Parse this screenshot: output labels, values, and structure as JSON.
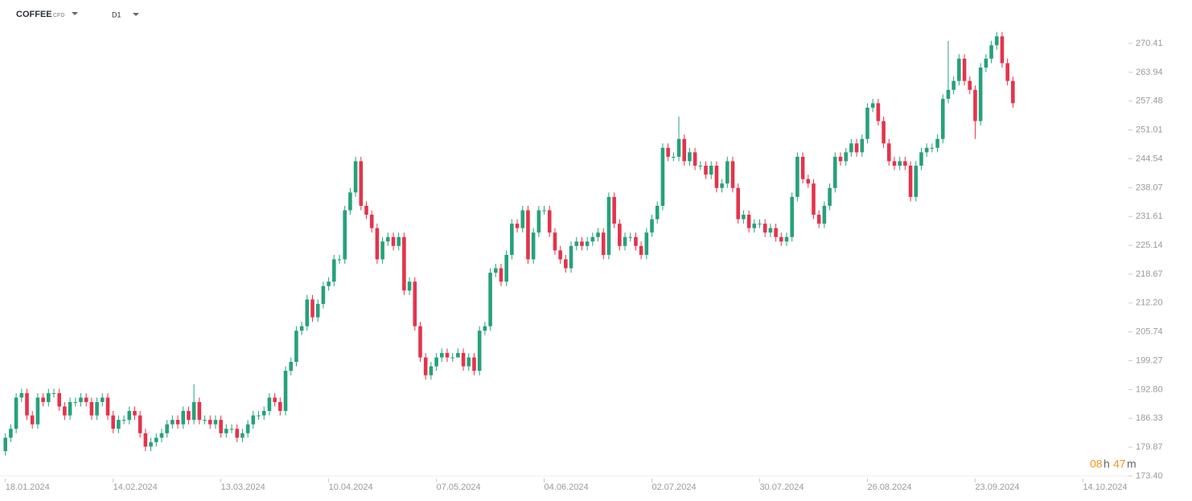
{
  "header": {
    "symbol": "COFFEE",
    "instrument_type": "CFD",
    "timeframe": "D1"
  },
  "timer": {
    "hours": "08",
    "hours_unit": "h",
    "minutes": "47",
    "minutes_unit": "m"
  },
  "chart_data": {
    "type": "candlestick",
    "xlim": [
      -1,
      208
    ],
    "ylim": [
      173.4,
      280.15
    ],
    "xticks": [
      {
        "value": 0,
        "label": "18.01.2024"
      },
      {
        "value": 20,
        "label": "14.02.2024"
      },
      {
        "value": 40,
        "label": "13.03.2024"
      },
      {
        "value": 60,
        "label": "10.04.2024"
      },
      {
        "value": 80,
        "label": "07.05.2024"
      },
      {
        "value": 100,
        "label": "04.06.2024"
      },
      {
        "value": 120,
        "label": "02.07.2024"
      },
      {
        "value": 140,
        "label": "30.07.2024"
      },
      {
        "value": 160,
        "label": "26.08.2024"
      },
      {
        "value": 180,
        "label": "23.09.2024"
      },
      {
        "value": 200,
        "label": "14.10.2024"
      }
    ],
    "yticks": [
      {
        "value": 173.4,
        "label": "173.40"
      },
      179.87,
      186.33,
      {
        "value": 192.8,
        "label": "192.80"
      },
      199.27,
      205.74,
      {
        "value": 212.2,
        "label": "212.20"
      },
      218.67,
      225.14,
      231.61,
      238.07,
      244.54,
      251.01,
      257.48,
      263.94,
      270.41
    ],
    "up_color": "#26a17b",
    "down_color": "#e5334b",
    "open": [
      179,
      182,
      184,
      191,
      192,
      187,
      185,
      191,
      190,
      192,
      192,
      189,
      187,
      190,
      190,
      191,
      190,
      187,
      190,
      191,
      187,
      184,
      186,
      186,
      188,
      187,
      183,
      180,
      181,
      182,
      183,
      185,
      186,
      185,
      188,
      186,
      190,
      186,
      186,
      185,
      186,
      183,
      184,
      184,
      182,
      183,
      185,
      187,
      187,
      188,
      191,
      190,
      188,
      197,
      199,
      206,
      207,
      213,
      209,
      212,
      216,
      217,
      222,
      222,
      233,
      237,
      244,
      234,
      232,
      229,
      222,
      226,
      227,
      225,
      227,
      215,
      217,
      207,
      200,
      196,
      198,
      200,
      201,
      200,
      200,
      201,
      198,
      200,
      197,
      206,
      207,
      219,
      220,
      217,
      223,
      230,
      229,
      233,
      222,
      228,
      233,
      233,
      228,
      224,
      222,
      220,
      225,
      226,
      225,
      226,
      227,
      228,
      223,
      236,
      230,
      225,
      227,
      227,
      225,
      223,
      228,
      231,
      234,
      247,
      245,
      245,
      249,
      244,
      246,
      243,
      243,
      241,
      243,
      238,
      239,
      244,
      238,
      231,
      232,
      229,
      230,
      230,
      228,
      229,
      227,
      226,
      227,
      236,
      245,
      240,
      239,
      232,
      230,
      234,
      238,
      245,
      244,
      246,
      248,
      246,
      249,
      256,
      257,
      253,
      248,
      244,
      243,
      244,
      243,
      236,
      243,
      246,
      247,
      247,
      249,
      258,
      260,
      262,
      267,
      262,
      260,
      253,
      265,
      267,
      270,
      272,
      266,
      262
    ],
    "high": [
      183,
      185,
      192,
      193,
      193,
      188,
      192,
      192,
      193,
      193,
      193,
      190,
      191,
      191,
      192,
      192,
      191,
      191,
      192,
      192,
      188,
      187,
      187,
      189,
      189,
      188,
      184,
      182,
      183,
      184,
      186,
      187,
      187,
      189,
      189,
      194,
      191,
      187,
      187,
      187,
      187,
      185,
      185,
      185,
      184,
      186,
      188,
      188,
      189,
      192,
      192,
      191,
      198,
      200,
      207,
      208,
      214,
      214,
      213,
      217,
      218,
      223,
      223,
      234,
      238,
      245,
      245,
      235,
      233,
      230,
      227,
      228,
      228,
      228,
      228,
      218,
      218,
      208,
      201,
      199,
      201,
      202,
      202,
      201,
      202,
      202,
      201,
      201,
      207,
      208,
      220,
      221,
      221,
      224,
      231,
      231,
      234,
      234,
      229,
      234,
      234,
      234,
      229,
      225,
      223,
      226,
      227,
      227,
      227,
      228,
      229,
      229,
      237,
      237,
      231,
      228,
      228,
      228,
      226,
      229,
      232,
      235,
      248,
      248,
      246,
      254,
      250,
      247,
      247,
      244,
      244,
      244,
      244,
      240,
      245,
      245,
      239,
      233,
      233,
      231,
      231,
      231,
      230,
      230,
      228,
      228,
      237,
      246,
      246,
      241,
      240,
      233,
      235,
      239,
      246,
      246,
      247,
      249,
      249,
      250,
      257,
      258,
      258,
      254,
      249,
      245,
      245,
      245,
      244,
      244,
      247,
      248,
      248,
      250,
      259,
      271,
      263,
      268,
      268,
      263,
      261,
      266,
      268,
      271,
      273,
      273,
      267,
      263
    ],
    "low": [
      178,
      181,
      183,
      190,
      186,
      184,
      184,
      189,
      189,
      191,
      188,
      186,
      186,
      189,
      189,
      189,
      186,
      186,
      189,
      186,
      183,
      183,
      185,
      185,
      186,
      182,
      179,
      179,
      180,
      181,
      182,
      184,
      184,
      184,
      185,
      185,
      185,
      185,
      184,
      184,
      182,
      182,
      183,
      181,
      181,
      182,
      184,
      186,
      186,
      187,
      189,
      187,
      187,
      196,
      198,
      205,
      206,
      208,
      208,
      211,
      215,
      216,
      221,
      221,
      232,
      236,
      233,
      231,
      228,
      221,
      221,
      225,
      224,
      224,
      214,
      214,
      206,
      199,
      195,
      195,
      197,
      199,
      199,
      199,
      200,
      197,
      197,
      196,
      196,
      205,
      206,
      218,
      216,
      216,
      222,
      228,
      228,
      221,
      221,
      227,
      232,
      227,
      223,
      221,
      219,
      219,
      224,
      224,
      224,
      225,
      226,
      222,
      222,
      229,
      224,
      224,
      226,
      224,
      222,
      222,
      227,
      230,
      233,
      244,
      244,
      244,
      243,
      243,
      242,
      242,
      240,
      240,
      237,
      237,
      238,
      237,
      230,
      230,
      228,
      228,
      229,
      227,
      227,
      226,
      225,
      225,
      226,
      235,
      239,
      238,
      231,
      229,
      229,
      233,
      237,
      243,
      243,
      245,
      245,
      245,
      248,
      255,
      252,
      247,
      243,
      242,
      242,
      242,
      235,
      235,
      242,
      245,
      246,
      246,
      248,
      257,
      259,
      261,
      261,
      259,
      249,
      252,
      264,
      266,
      269,
      265,
      261,
      256
    ],
    "close": [
      182,
      184,
      191,
      192,
      187,
      185,
      191,
      190,
      192,
      192,
      189,
      187,
      190,
      190,
      191,
      190,
      187,
      190,
      191,
      187,
      184,
      186,
      186,
      188,
      187,
      183,
      180,
      181,
      182,
      183,
      185,
      186,
      185,
      188,
      186,
      190,
      186,
      186,
      185,
      186,
      183,
      184,
      184,
      182,
      183,
      185,
      187,
      187,
      188,
      191,
      190,
      188,
      197,
      199,
      206,
      207,
      213,
      209,
      212,
      216,
      217,
      222,
      222,
      233,
      237,
      244,
      234,
      232,
      229,
      222,
      226,
      227,
      225,
      227,
      215,
      217,
      207,
      200,
      196,
      198,
      200,
      201,
      200,
      200,
      201,
      198,
      200,
      197,
      206,
      207,
      219,
      220,
      217,
      223,
      230,
      229,
      233,
      222,
      228,
      233,
      233,
      228,
      224,
      222,
      220,
      225,
      226,
      225,
      226,
      227,
      228,
      223,
      236,
      230,
      225,
      227,
      227,
      225,
      223,
      228,
      231,
      234,
      247,
      245,
      245,
      249,
      244,
      246,
      243,
      243,
      241,
      243,
      238,
      239,
      244,
      238,
      231,
      232,
      229,
      230,
      230,
      228,
      229,
      227,
      226,
      227,
      236,
      245,
      240,
      239,
      232,
      230,
      234,
      238,
      245,
      244,
      246,
      248,
      246,
      249,
      256,
      257,
      253,
      248,
      244,
      243,
      244,
      243,
      236,
      243,
      246,
      247,
      247,
      249,
      258,
      260,
      262,
      267,
      262,
      260,
      253,
      265,
      267,
      270,
      272,
      266,
      262,
      257
    ]
  }
}
